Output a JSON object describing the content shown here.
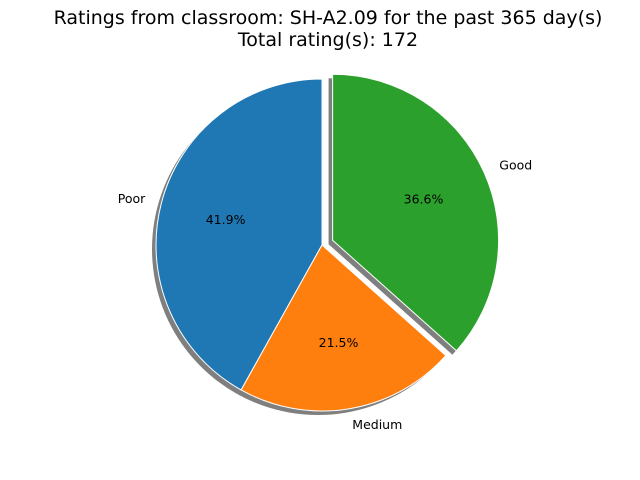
{
  "chart_data": {
    "type": "pie",
    "title": "Ratings from classroom: SH-A2.09 for the past 365 day(s)",
    "subtitle": "Total rating(s): 172",
    "slices": [
      {
        "label": "Poor",
        "value": 41.9,
        "percent_label": "41.9%",
        "color": "#1f77b4",
        "exploded": false
      },
      {
        "label": "Medium",
        "value": 21.5,
        "percent_label": "21.5%",
        "color": "#ff7f0e",
        "exploded": false
      },
      {
        "label": "Good",
        "value": 36.6,
        "percent_label": "36.6%",
        "color": "#2ca02c",
        "exploded": true
      }
    ],
    "start_angle": 90,
    "direction": "counterclockwise",
    "shadow": true
  }
}
